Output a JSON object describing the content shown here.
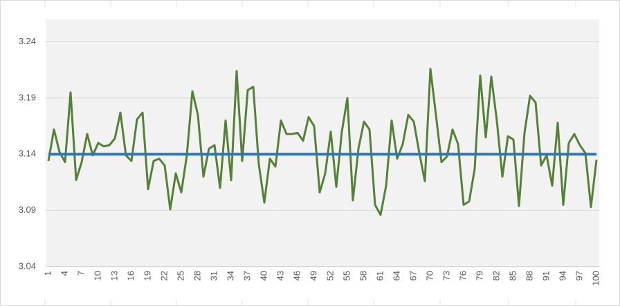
{
  "chart_data": {
    "type": "line",
    "categories": [
      "1",
      null,
      null,
      "4",
      null,
      null,
      "7",
      null,
      null,
      "10",
      null,
      null,
      "13",
      null,
      null,
      "16",
      null,
      null,
      "19",
      null,
      null,
      "22",
      null,
      null,
      "25",
      null,
      null,
      "28",
      null,
      null,
      "31",
      null,
      null,
      "34",
      null,
      null,
      "37",
      null,
      null,
      "40",
      null,
      null,
      "43",
      null,
      null,
      "46",
      null,
      null,
      "49",
      null,
      null,
      "52",
      null,
      null,
      "55",
      null,
      null,
      "58",
      null,
      null,
      "61",
      null,
      null,
      "64",
      null,
      null,
      "67",
      null,
      null,
      "70",
      null,
      null,
      "73",
      null,
      null,
      "76",
      null,
      null,
      "79",
      null,
      null,
      "82",
      null,
      null,
      "85",
      null,
      null,
      "88",
      null,
      null,
      "91",
      null,
      null,
      "94",
      null,
      null,
      "97",
      null,
      null,
      "100"
    ],
    "series": [
      {
        "color": "#548235",
        "values": [
          3.134,
          3.162,
          3.142,
          3.133,
          3.195,
          3.117,
          3.133,
          3.158,
          3.139,
          3.15,
          3.147,
          3.148,
          3.154,
          3.177,
          3.139,
          3.134,
          3.171,
          3.177,
          3.109,
          3.134,
          3.136,
          3.13,
          3.091,
          3.123,
          3.106,
          3.139,
          3.196,
          3.175,
          3.12,
          3.145,
          3.148,
          3.11,
          3.17,
          3.117,
          3.214,
          3.134,
          3.197,
          3.2,
          3.131,
          3.097,
          3.136,
          3.129,
          3.17,
          3.158,
          3.158,
          3.159,
          3.152,
          3.173,
          3.165,
          3.106,
          3.123,
          3.16,
          3.111,
          3.16,
          3.19,
          3.099,
          3.145,
          3.169,
          3.162,
          3.095,
          3.086,
          3.112,
          3.17,
          3.136,
          3.149,
          3.175,
          3.169,
          3.141,
          3.116,
          3.216,
          3.175,
          3.133,
          3.138,
          3.162,
          3.149,
          3.095,
          3.098,
          3.127,
          3.21,
          3.155,
          3.209,
          3.17,
          3.12,
          3.156,
          3.153,
          3.094,
          3.159,
          3.192,
          3.186,
          3.13,
          3.139,
          3.112,
          3.168,
          3.095,
          3.15,
          3.158,
          3.148,
          3.141,
          3.093,
          3.135
        ]
      },
      {
        "color": "#2e75b6",
        "values": [
          3.14,
          3.14,
          3.14,
          3.14,
          3.14,
          3.14,
          3.14,
          3.14,
          3.14,
          3.14,
          3.14,
          3.14,
          3.14,
          3.14,
          3.14,
          3.14,
          3.14,
          3.14,
          3.14,
          3.14,
          3.14,
          3.14,
          3.14,
          3.14,
          3.14,
          3.14,
          3.14,
          3.14,
          3.14,
          3.14,
          3.14,
          3.14,
          3.14,
          3.14,
          3.14,
          3.14,
          3.14,
          3.14,
          3.14,
          3.14,
          3.14,
          3.14,
          3.14,
          3.14,
          3.14,
          3.14,
          3.14,
          3.14,
          3.14,
          3.14,
          3.14,
          3.14,
          3.14,
          3.14,
          3.14,
          3.14,
          3.14,
          3.14,
          3.14,
          3.14,
          3.14,
          3.14,
          3.14,
          3.14,
          3.14,
          3.14,
          3.14,
          3.14,
          3.14,
          3.14,
          3.14,
          3.14,
          3.14,
          3.14,
          3.14,
          3.14,
          3.14,
          3.14,
          3.14,
          3.14,
          3.14,
          3.14,
          3.14,
          3.14,
          3.14,
          3.14,
          3.14,
          3.14,
          3.14,
          3.14,
          3.14,
          3.14,
          3.14,
          3.14,
          3.14,
          3.14,
          3.14,
          3.14,
          3.14,
          3.14
        ]
      }
    ],
    "ylim": [
      3.04,
      3.26
    ],
    "yticks": [
      3.04,
      3.09,
      3.14,
      3.19,
      3.24
    ],
    "grid": true
  }
}
